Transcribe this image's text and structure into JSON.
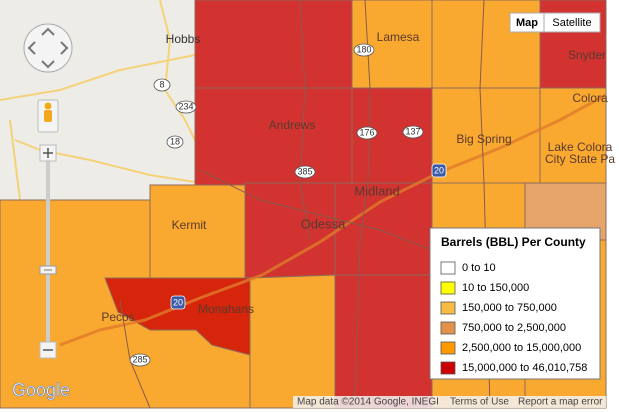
{
  "map_type_buttons": [
    "Map",
    "Satellite"
  ],
  "places": [
    "Hobbs",
    "Lamesa",
    "Snyder",
    "Andrews",
    "Big Spring",
    "Colora",
    "Lake Colora",
    "City State Pa",
    "Midland",
    "Odessa",
    "Kermit",
    "Monahans",
    "Pecos"
  ],
  "road_shields": [
    "8",
    "234",
    "18",
    "180",
    "176",
    "137",
    "385",
    "20",
    "20",
    "285"
  ],
  "legend": {
    "title": "Barrels (BBL) Per County",
    "items": [
      {
        "label": "0 to 10",
        "color": "#ffffff"
      },
      {
        "label": "10 to 150,000",
        "color": "#ffff00"
      },
      {
        "label": "150,000 to 750,000",
        "color": "#f7ba45"
      },
      {
        "label": "750,000 to 2,500,000",
        "color": "#e3924a"
      },
      {
        "label": "2,500,000 to 15,000,000",
        "color": "#ff9900"
      },
      {
        "label": "15,000,000 to 46,010,758",
        "color": "#cc0000"
      }
    ]
  },
  "attribution": {
    "logo": "Google",
    "map_data": "Map data ©2014 Google, INEGI",
    "terms": "Terms of Use",
    "report": "Report a map error"
  }
}
